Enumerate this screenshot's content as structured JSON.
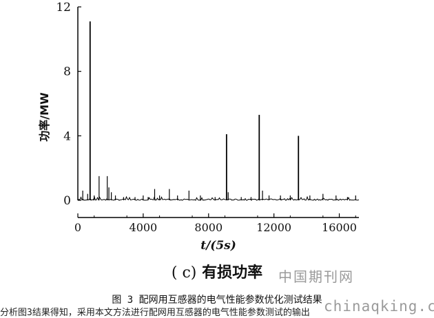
{
  "chart_data": {
    "type": "bar",
    "title": "",
    "xlabel": "t/(5s)",
    "ylabel": "功率/MW",
    "xlim": [
      0,
      17200
    ],
    "ylim": [
      0,
      12
    ],
    "x_ticks": [
      0,
      4000,
      8000,
      12000,
      16000
    ],
    "y_ticks": [
      0,
      4,
      8,
      12
    ],
    "grid": false,
    "series": [
      {
        "x": [
          300,
          600,
          750,
          1000,
          1300,
          1800,
          1900,
          2050,
          2300,
          2800,
          3500,
          4000,
          4300,
          4700,
          5000,
          5600,
          6100,
          6800,
          7500,
          8400,
          9100,
          9200,
          10000,
          10600,
          11100,
          11300,
          11700,
          12400,
          13000,
          13500,
          14200,
          15000,
          15800,
          16500,
          17000
        ],
        "values": [
          0.6,
          0.4,
          11.1,
          0.3,
          1.5,
          1.5,
          0.8,
          0.5,
          0.3,
          0.2,
          0.2,
          0.3,
          0.2,
          0.7,
          0.3,
          0.7,
          0.3,
          0.6,
          0.3,
          0.2,
          4.1,
          0.5,
          0.2,
          0.2,
          5.3,
          0.6,
          0.3,
          0.3,
          0.3,
          4.0,
          0.3,
          0.4,
          0.3,
          0.2,
          0.3
        ]
      }
    ]
  },
  "caption": {
    "subfigure_label_prefix": "( c)",
    "subfigure_label_text": "有损功率",
    "figure_caption": "图 3 配网用互感器的电气性能参数优化测试结果",
    "body_text": "分析图3结果得知，采用本文方法进行配网用互感器的电气性能参数测试的输出"
  },
  "watermarks": {
    "site_cn": "中国期刊网",
    "url": "chinaqking.com"
  }
}
